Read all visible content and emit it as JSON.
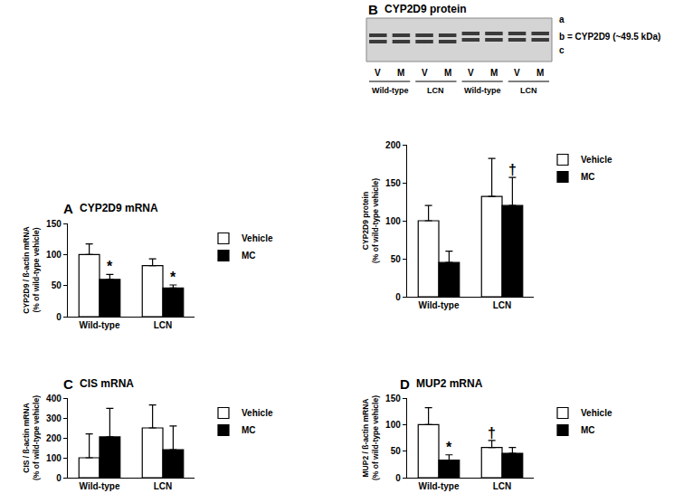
{
  "chart_data": [
    {
      "type": "bar",
      "panel": "A",
      "title": "CYP2D9 mRNA",
      "y_label": [
        "CYP2D9 / ß-actin mRNA",
        "(% of wild-type vehicle)"
      ],
      "categories": [
        "Wild-type",
        "LCN"
      ],
      "series": [
        {
          "name": "Vehicle",
          "color": "#ffffff",
          "values": [
            100,
            82
          ],
          "errors": [
            17,
            11
          ]
        },
        {
          "name": "MC",
          "color": "#000000",
          "values": [
            60,
            46
          ],
          "errors": [
            8,
            5
          ]
        }
      ],
      "ylim": [
        0,
        150
      ],
      "yticks": [
        0,
        50,
        100,
        150
      ],
      "legend": "right",
      "annotations": [
        {
          "text": "*",
          "category": "Wild-type",
          "series": "MC"
        },
        {
          "text": "*",
          "category": "LCN",
          "series": "MC"
        }
      ]
    },
    {
      "type": "bar",
      "panel": "B",
      "title": "CYP2D9 protein",
      "y_label": [
        "CYP2D9 protein",
        "(% of wild-type vehicle)"
      ],
      "categories": [
        "Wild-type",
        "LCN"
      ],
      "series": [
        {
          "name": "Vehicle",
          "color": "#ffffff",
          "values": [
            100,
            132
          ],
          "errors": [
            20,
            50
          ]
        },
        {
          "name": "MC",
          "color": "#000000",
          "values": [
            45,
            120
          ],
          "errors": [
            15,
            37
          ]
        }
      ],
      "ylim": [
        0,
        200
      ],
      "yticks": [
        0,
        50,
        100,
        150,
        200
      ],
      "legend": "right",
      "annotations": [
        {
          "text": "†",
          "category": "LCN",
          "series": "MC"
        }
      ],
      "blot": {
        "band_labels": [
          "a",
          "b = CYP2D9 (~49.5 kDa)",
          "c"
        ],
        "lane_labels": [
          "V",
          "M",
          "V",
          "M",
          "V",
          "M",
          "V",
          "M"
        ],
        "group_labels": [
          "Wild-type",
          "LCN",
          "Wild-type",
          "LCN"
        ]
      }
    },
    {
      "type": "bar",
      "panel": "C",
      "title": "CIS mRNA",
      "y_label": [
        "CIS / ß-actin mRNA",
        "(% of wild-type vehicle)"
      ],
      "categories": [
        "Wild-type",
        "LCN"
      ],
      "series": [
        {
          "name": "Vehicle",
          "color": "#ffffff",
          "values": [
            100,
            250
          ],
          "errors": [
            120,
            115
          ]
        },
        {
          "name": "MC",
          "color": "#000000",
          "values": [
            205,
            140
          ],
          "errors": [
            143,
            120
          ]
        }
      ],
      "ylim": [
        0,
        400
      ],
      "yticks": [
        0,
        100,
        200,
        300,
        400
      ],
      "legend": "right"
    },
    {
      "type": "bar",
      "panel": "D",
      "title": "MUP2 mRNA",
      "y_label": [
        "MUP2 / ß-actin mRNA",
        "(% of wild-type vehicle)"
      ],
      "categories": [
        "Wild-type",
        "LCN"
      ],
      "series": [
        {
          "name": "Vehicle",
          "color": "#ffffff",
          "values": [
            100,
            57
          ],
          "errors": [
            32,
            13
          ]
        },
        {
          "name": "MC",
          "color": "#000000",
          "values": [
            33,
            46
          ],
          "errors": [
            10,
            11
          ]
        }
      ],
      "ylim": [
        0,
        150
      ],
      "yticks": [
        0,
        50,
        100,
        150
      ],
      "legend": "right",
      "annotations": [
        {
          "text": "*",
          "category": "Wild-type",
          "series": "MC"
        },
        {
          "text": "†",
          "category": "LCN",
          "series": "Vehicle"
        }
      ]
    }
  ]
}
